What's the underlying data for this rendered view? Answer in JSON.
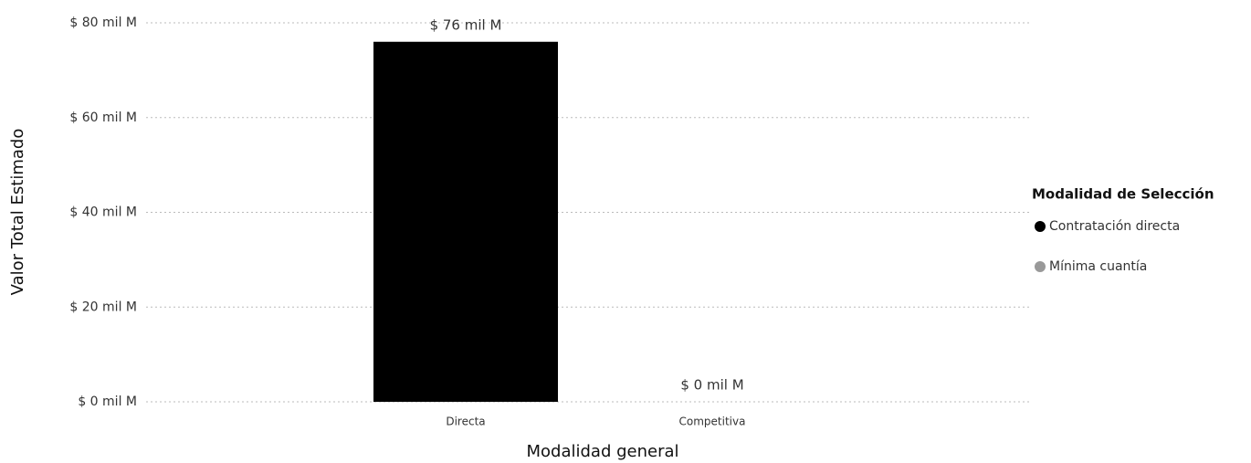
{
  "chart_data": {
    "type": "bar",
    "categories": [
      "Directa",
      "Competitiva"
    ],
    "series": [
      {
        "name": "Contratación directa",
        "color": "#000000",
        "values": [
          76,
          null
        ],
        "value_labels": [
          "$ 76 mil M",
          null
        ]
      },
      {
        "name": "Mínima cuantía",
        "color": "#999999",
        "values": [
          null,
          0
        ],
        "value_labels": [
          null,
          "$ 0 mil M"
        ]
      }
    ],
    "ylim": [
      0,
      80
    ],
    "yticks": [
      {
        "value": 0,
        "label": "$ 0 mil M"
      },
      {
        "value": 20,
        "label": "$ 20 mil M"
      },
      {
        "value": 40,
        "label": "$ 40 mil M"
      },
      {
        "value": 60,
        "label": "$ 60 mil M"
      },
      {
        "value": 80,
        "label": "$ 80 mil M"
      }
    ],
    "grid": true,
    "xlabel": "Modalidad general",
    "ylabel": "Valor Total Estimado",
    "legend_title": "Modalidad de Selección",
    "legend_position": "right"
  }
}
